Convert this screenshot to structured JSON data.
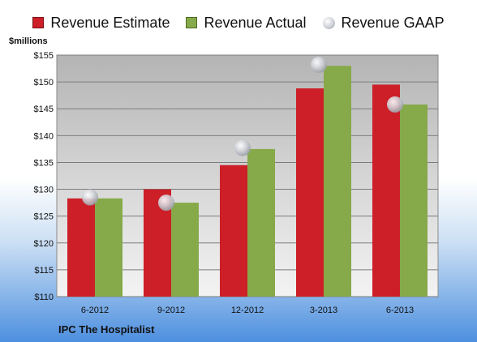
{
  "chart_data": {
    "type": "bar",
    "ylabel": "$millions",
    "ylim": [
      110,
      155
    ],
    "yticks": [
      110,
      115,
      120,
      125,
      130,
      135,
      140,
      145,
      150,
      155
    ],
    "categories": [
      "6-2012",
      "9-2012",
      "12-2012",
      "3-2013",
      "6-2013"
    ],
    "series": [
      {
        "name": "Revenue Estimate",
        "values": [
          128.3,
          130.0,
          134.5,
          148.8,
          149.5
        ],
        "color": "#cc1f28"
      },
      {
        "name": "Revenue Actual",
        "values": [
          128.3,
          127.5,
          137.5,
          153.0,
          145.8
        ],
        "color": "#86a94a"
      }
    ],
    "markers": [
      {
        "name": "Revenue GAAP",
        "values": [
          128.5,
          127.5,
          137.7,
          153.2,
          145.8
        ]
      }
    ],
    "grid": true,
    "legend": "top",
    "footer": "IPC The Hospitalist"
  }
}
